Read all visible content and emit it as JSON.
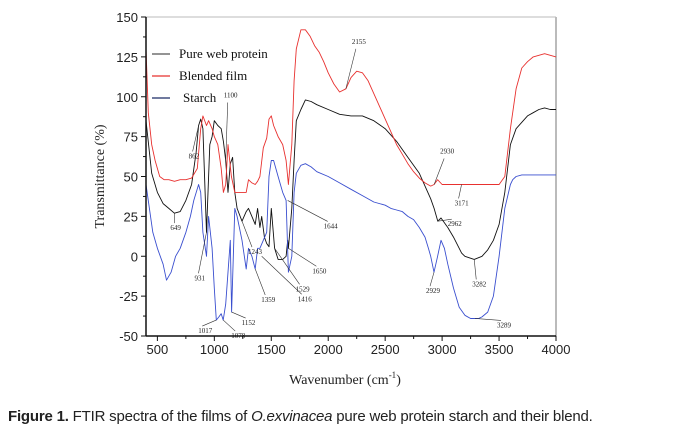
{
  "chart_data": {
    "type": "line",
    "title": "",
    "xlabel": "Wavenumber (cm",
    "xlabel_sup": "-1",
    "xlabel_end": ")",
    "ylabel": "Transmittance (%)",
    "xlim": [
      400,
      4000
    ],
    "ylim": [
      -50,
      150
    ],
    "xticks": [
      500,
      1000,
      1500,
      2000,
      2500,
      3000,
      3500,
      4000
    ],
    "yticks": [
      150,
      125,
      100,
      75,
      50,
      25,
      0,
      -25,
      -50
    ],
    "grid": false,
    "legend_position": "top-left",
    "series": [
      {
        "name": "Pure web protein",
        "color": "#111111",
        "x": [
          400,
          450,
          500,
          550,
          600,
          649,
          700,
          750,
          800,
          840,
          862,
          880,
          900,
          931,
          960,
          980,
          1000,
          1030,
          1060,
          1080,
          1100,
          1120,
          1140,
          1160,
          1180,
          1200,
          1243,
          1280,
          1300,
          1330,
          1359,
          1380,
          1400,
          1416,
          1440,
          1460,
          1480,
          1500,
          1529,
          1560,
          1600,
          1630,
          1644,
          1650,
          1680,
          1700,
          1720,
          1760,
          1800,
          1850,
          1900,
          2000,
          2100,
          2200,
          2300,
          2400,
          2500,
          2600,
          2700,
          2800,
          2900,
          2930,
          2962,
          2990,
          3050,
          3100,
          3171,
          3200,
          3282,
          3350,
          3400,
          3450,
          3500,
          3550,
          3600,
          3650,
          3700,
          3750,
          3800,
          3850,
          3900,
          3950,
          4000
        ],
        "y": [
          85,
          52,
          40,
          33,
          30,
          27,
          28,
          35,
          45,
          65,
          82,
          86,
          80,
          15,
          70,
          75,
          85,
          82,
          80,
          72,
          60,
          40,
          58,
          62,
          40,
          30,
          22,
          28,
          30,
          25,
          20,
          30,
          18,
          25,
          12,
          8,
          6,
          30,
          5,
          -2,
          -2,
          0,
          10,
          5,
          30,
          60,
          85,
          92,
          98,
          97,
          95,
          92,
          89,
          88,
          88,
          85,
          80,
          72,
          62,
          52,
          36,
          30,
          22,
          24,
          18,
          12,
          2,
          0,
          -2,
          0,
          4,
          10,
          20,
          40,
          70,
          80,
          84,
          88,
          90,
          92,
          93,
          92,
          92
        ]
      },
      {
        "name": "Blended film",
        "color": "#e8312f",
        "x": [
          400,
          420,
          450,
          480,
          520,
          560,
          600,
          650,
          700,
          750,
          800,
          850,
          880,
          900,
          931,
          950,
          980,
          1000,
          1030,
          1060,
          1080,
          1100,
          1120,
          1150,
          1180,
          1200,
          1243,
          1280,
          1300,
          1330,
          1359,
          1380,
          1400,
          1430,
          1460,
          1480,
          1500,
          1520,
          1560,
          1600,
          1630,
          1650,
          1680,
          1700,
          1720,
          1760,
          1800,
          1840,
          1880,
          1920,
          1960,
          2000,
          2050,
          2100,
          2155,
          2200,
          2250,
          2300,
          2350,
          2400,
          2450,
          2500,
          2550,
          2600,
          2650,
          2700,
          2750,
          2800,
          2850,
          2900,
          2930,
          2960,
          3000,
          3050,
          3100,
          3171,
          3250,
          3300,
          3350,
          3400,
          3450,
          3500,
          3550,
          3600,
          3650,
          3700,
          3750,
          3800,
          3850,
          3900,
          3950,
          4000
        ],
        "y": [
          130,
          90,
          70,
          60,
          50,
          48,
          48,
          47,
          48,
          48,
          49,
          55,
          80,
          88,
          82,
          85,
          80,
          75,
          70,
          55,
          40,
          45,
          70,
          50,
          40,
          40,
          40,
          40,
          48,
          46,
          45,
          47,
          50,
          68,
          74,
          86,
          88,
          82,
          75,
          70,
          60,
          45,
          70,
          110,
          130,
          142,
          142,
          138,
          132,
          128,
          122,
          115,
          108,
          103,
          105,
          112,
          116,
          115,
          110,
          102,
          94,
          86,
          78,
          70,
          64,
          58,
          53,
          49,
          46,
          44,
          45,
          48,
          45,
          45,
          45,
          45,
          45,
          45,
          45,
          45,
          45,
          45,
          50,
          80,
          105,
          118,
          122,
          125,
          126,
          127,
          126,
          125
        ]
      },
      {
        "name": "Starch",
        "color": "#3a4fcf",
        "x": [
          400,
          430,
          460,
          500,
          550,
          580,
          620,
          660,
          700,
          750,
          790,
          820,
          862,
          880,
          900,
          931,
          950,
          980,
          1000,
          1017,
          1040,
          1060,
          1078,
          1100,
          1120,
          1140,
          1152,
          1180,
          1200,
          1243,
          1280,
          1300,
          1330,
          1359,
          1380,
          1400,
          1430,
          1460,
          1480,
          1500,
          1520,
          1560,
          1600,
          1630,
          1650,
          1680,
          1700,
          1720,
          1760,
          1800,
          1850,
          1900,
          2000,
          2100,
          2200,
          2300,
          2400,
          2500,
          2550,
          2600,
          2650,
          2700,
          2750,
          2800,
          2850,
          2880,
          2900,
          2929,
          2960,
          2990,
          3020,
          3050,
          3100,
          3150,
          3200,
          3250,
          3289,
          3320,
          3350,
          3400,
          3450,
          3500,
          3550,
          3600,
          3620,
          3650,
          3700,
          3750,
          3800,
          3850,
          3900,
          3950,
          4000
        ],
        "y": [
          45,
          30,
          15,
          5,
          -5,
          -15,
          -10,
          0,
          5,
          15,
          25,
          35,
          45,
          40,
          15,
          0,
          25,
          5,
          -20,
          -40,
          -38,
          -36,
          -40,
          -30,
          -10,
          10,
          -35,
          30,
          25,
          10,
          -8,
          5,
          0,
          -8,
          5,
          5,
          10,
          15,
          50,
          60,
          60,
          50,
          40,
          35,
          -10,
          0,
          40,
          52,
          57,
          58,
          56,
          53,
          50,
          46,
          42,
          38,
          34,
          32,
          30,
          29,
          28,
          25,
          23,
          18,
          12,
          5,
          0,
          -10,
          0,
          10,
          5,
          -5,
          -20,
          -32,
          -37,
          -39,
          -39,
          -39,
          -38,
          -35,
          -25,
          0,
          30,
          45,
          48,
          50,
          51,
          51,
          51,
          51,
          51,
          51,
          51
        ]
      }
    ],
    "annotations": [
      {
        "text": "649",
        "series": "Pure web protein",
        "x": 649,
        "y": 27
      },
      {
        "text": "862",
        "series": "Pure web protein",
        "x": 862,
        "y": 82
      },
      {
        "text": "931",
        "series": "Pure web protein",
        "x": 931,
        "y": 15
      },
      {
        "text": "1100",
        "series": "Pure web protein",
        "x": 1100,
        "y": 60
      },
      {
        "text": "1017",
        "series": "Starch",
        "x": 1017,
        "y": -40
      },
      {
        "text": "1078",
        "series": "Starch",
        "x": 1078,
        "y": -40
      },
      {
        "text": "1152",
        "series": "Starch",
        "x": 1152,
        "y": -35
      },
      {
        "text": "1243",
        "series": "Pure web protein",
        "x": 1243,
        "y": 22
      },
      {
        "text": "1359",
        "series": "Starch",
        "x": 1359,
        "y": -8
      },
      {
        "text": "1416",
        "series": "Starch",
        "x": 1416,
        "y": 0
      },
      {
        "text": "1529",
        "series": "Pure web protein",
        "x": 1529,
        "y": 5
      },
      {
        "text": "1650",
        "series": "Pure web protein",
        "x": 1650,
        "y": 5
      },
      {
        "text": "1644",
        "series": "Starch",
        "x": 1644,
        "y": 35
      },
      {
        "text": "2155",
        "series": "Blended film",
        "x": 2155,
        "y": 105
      },
      {
        "text": "2930",
        "series": "Blended film",
        "x": 2930,
        "y": 45
      },
      {
        "text": "2962",
        "series": "Pure web protein",
        "x": 2962,
        "y": 22
      },
      {
        "text": "3171",
        "series": "Blended film",
        "x": 3171,
        "y": 45
      },
      {
        "text": "3282",
        "series": "Pure web protein",
        "x": 3282,
        "y": -2
      },
      {
        "text": "2929",
        "series": "Starch",
        "x": 2929,
        "y": -10
      },
      {
        "text": "3289",
        "series": "Starch",
        "x": 3289,
        "y": -39
      }
    ]
  },
  "caption": {
    "label": "Figure 1.",
    "text_before": " FTIR spectra of the films of ",
    "species": "O.exvinacea",
    "text_after": " pure web protein starch and their blend."
  }
}
